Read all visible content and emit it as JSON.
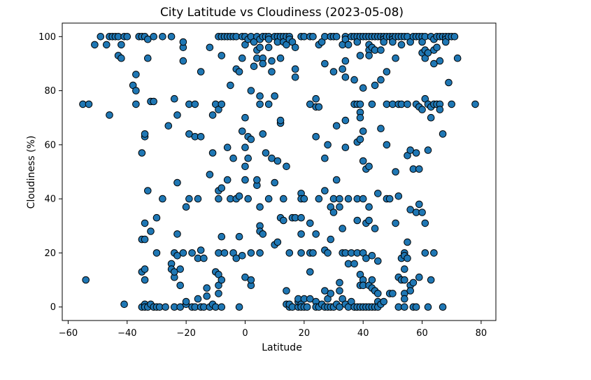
{
  "chart_data": {
    "type": "scatter",
    "title": "City Latitude vs Cloudiness (2023-05-08)",
    "xlabel": "Latitude",
    "ylabel": "Cloudiness (%)",
    "xlim": [
      -62,
      85
    ],
    "ylim": [
      -5,
      105
    ],
    "x_ticks": [
      -60,
      -40,
      -20,
      0,
      20,
      40,
      60,
      80
    ],
    "y_ticks": [
      0,
      20,
      40,
      60,
      80,
      100
    ],
    "grid": false,
    "marker_color": "#1f77b4",
    "marker_edge": "#000000",
    "points": [
      [
        -54,
        10
      ],
      [
        -55,
        75
      ],
      [
        -53,
        75
      ],
      [
        -51,
        97
      ],
      [
        -49,
        100
      ],
      [
        -47,
        97
      ],
      [
        -46,
        71
      ],
      [
        -46,
        100
      ],
      [
        -45,
        100
      ],
      [
        -44,
        100
      ],
      [
        -43,
        100
      ],
      [
        -43,
        93
      ],
      [
        -42,
        92
      ],
      [
        -42,
        97
      ],
      [
        -41,
        100
      ],
      [
        -41,
        1
      ],
      [
        -40,
        100
      ],
      [
        -38,
        82
      ],
      [
        -37,
        86
      ],
      [
        -37,
        75
      ],
      [
        -37,
        80
      ],
      [
        -36,
        100
      ],
      [
        -35,
        100
      ],
      [
        -35,
        13
      ],
      [
        -35,
        0
      ],
      [
        -35,
        57
      ],
      [
        -35,
        25
      ],
      [
        -34,
        100
      ],
      [
        -34,
        63
      ],
      [
        -34,
        64
      ],
      [
        -34,
        31
      ],
      [
        -34,
        14
      ],
      [
        -34,
        10
      ],
      [
        -34,
        1
      ],
      [
        -34,
        25
      ],
      [
        -34,
        0
      ],
      [
        -33,
        99
      ],
      [
        -33,
        92
      ],
      [
        -33,
        43
      ],
      [
        -33,
        0
      ],
      [
        -32,
        1
      ],
      [
        -32,
        76
      ],
      [
        -32,
        28
      ],
      [
        -31,
        100
      ],
      [
        -31,
        76
      ],
      [
        -31,
        0
      ],
      [
        -30,
        20
      ],
      [
        -30,
        33
      ],
      [
        -30,
        0
      ],
      [
        -29,
        0
      ],
      [
        -28,
        40
      ],
      [
        -28,
        100
      ],
      [
        -27,
        0
      ],
      [
        -26,
        67
      ],
      [
        -25,
        100
      ],
      [
        -25,
        16
      ],
      [
        -25,
        14
      ],
      [
        -24,
        20
      ],
      [
        -24,
        77
      ],
      [
        -24,
        0
      ],
      [
        -24,
        11
      ],
      [
        -24,
        13
      ],
      [
        -23,
        46
      ],
      [
        -23,
        71
      ],
      [
        -23,
        27
      ],
      [
        -23,
        19
      ],
      [
        -22,
        8
      ],
      [
        -22,
        0
      ],
      [
        -22,
        14
      ],
      [
        -21,
        96
      ],
      [
        -21,
        98
      ],
      [
        -21,
        91
      ],
      [
        -21,
        20
      ],
      [
        -20,
        1
      ],
      [
        -20,
        2
      ],
      [
        -20,
        37
      ],
      [
        -19,
        75
      ],
      [
        -19,
        64
      ],
      [
        -19,
        40
      ],
      [
        -18,
        0
      ],
      [
        -18,
        20
      ],
      [
        -17,
        75
      ],
      [
        -17,
        63
      ],
      [
        -17,
        0
      ],
      [
        -16,
        40
      ],
      [
        -16,
        18
      ],
      [
        -16,
        3
      ],
      [
        -15,
        87
      ],
      [
        -15,
        63
      ],
      [
        -15,
        21
      ],
      [
        -15,
        0
      ],
      [
        -14,
        18
      ],
      [
        -14,
        0
      ],
      [
        -13,
        7
      ],
      [
        -13,
        4
      ],
      [
        -12,
        96
      ],
      [
        -12,
        49
      ],
      [
        -12,
        0
      ],
      [
        -11,
        71
      ],
      [
        -11,
        57
      ],
      [
        -11,
        1
      ],
      [
        -10,
        0
      ],
      [
        -10,
        75
      ],
      [
        -10,
        13
      ],
      [
        -9,
        100
      ],
      [
        -9,
        73
      ],
      [
        -9,
        43
      ],
      [
        -9,
        40
      ],
      [
        -9,
        20
      ],
      [
        -9,
        12
      ],
      [
        -9,
        8
      ],
      [
        -9,
        5
      ],
      [
        -8,
        100
      ],
      [
        -8,
        93
      ],
      [
        -8,
        75
      ],
      [
        -8,
        44
      ],
      [
        -8,
        26
      ],
      [
        -8,
        10
      ],
      [
        -8,
        0
      ],
      [
        -7,
        100
      ],
      [
        -7,
        20
      ],
      [
        -6,
        100
      ],
      [
        -6,
        59
      ],
      [
        -6,
        47
      ],
      [
        -5,
        100
      ],
      [
        -5,
        82
      ],
      [
        -5,
        40
      ],
      [
        -4,
        100
      ],
      [
        -4,
        55
      ],
      [
        -4,
        20
      ],
      [
        -3,
        100
      ],
      [
        -3,
        88
      ],
      [
        -3,
        40
      ],
      [
        -3,
        18
      ],
      [
        -2,
        87
      ],
      [
        -2,
        41
      ],
      [
        -2,
        26
      ],
      [
        -2,
        0
      ],
      [
        -1,
        100
      ],
      [
        -1,
        92
      ],
      [
        -1,
        65
      ],
      [
        -1,
        19
      ],
      [
        0,
        100
      ],
      [
        0,
        97
      ],
      [
        0,
        70
      ],
      [
        0,
        59
      ],
      [
        0,
        52
      ],
      [
        0,
        47
      ],
      [
        0,
        11
      ],
      [
        1,
        99
      ],
      [
        1,
        63
      ],
      [
        1,
        55
      ],
      [
        1,
        40
      ],
      [
        2,
        100
      ],
      [
        2,
        80
      ],
      [
        2,
        62
      ],
      [
        2,
        20
      ],
      [
        2,
        8
      ],
      [
        2,
        10
      ],
      [
        3,
        89
      ],
      [
        3,
        98
      ],
      [
        4,
        95
      ],
      [
        4,
        92
      ],
      [
        4,
        100
      ],
      [
        4,
        45
      ],
      [
        4,
        47
      ],
      [
        5,
        99
      ],
      [
        5,
        96
      ],
      [
        5,
        78
      ],
      [
        5,
        75
      ],
      [
        5,
        37
      ],
      [
        5,
        30
      ],
      [
        5,
        28
      ],
      [
        5,
        20
      ],
      [
        6,
        100
      ],
      [
        6,
        92
      ],
      [
        6,
        90
      ],
      [
        6,
        64
      ],
      [
        6,
        27
      ],
      [
        7,
        100
      ],
      [
        7,
        57
      ],
      [
        8,
        100
      ],
      [
        8,
        99
      ],
      [
        8,
        96
      ],
      [
        8,
        75
      ],
      [
        8,
        40
      ],
      [
        9,
        91
      ],
      [
        9,
        87
      ],
      [
        9,
        55
      ],
      [
        10,
        100
      ],
      [
        10,
        46
      ],
      [
        10,
        78
      ],
      [
        10,
        23
      ],
      [
        11,
        100
      ],
      [
        11,
        98
      ],
      [
        11,
        54
      ],
      [
        11,
        24
      ],
      [
        12,
        100
      ],
      [
        12,
        92
      ],
      [
        12,
        68
      ],
      [
        12,
        69
      ],
      [
        12,
        33
      ],
      [
        13,
        100
      ],
      [
        13,
        98
      ],
      [
        13,
        40
      ],
      [
        13,
        32
      ],
      [
        14,
        100
      ],
      [
        14,
        97
      ],
      [
        14,
        52
      ],
      [
        14,
        6
      ],
      [
        14,
        1
      ],
      [
        15,
        100
      ],
      [
        15,
        99
      ],
      [
        15,
        20
      ],
      [
        15,
        0
      ],
      [
        15,
        1
      ],
      [
        16,
        98
      ],
      [
        16,
        33
      ],
      [
        16,
        0
      ],
      [
        17,
        96
      ],
      [
        17,
        85
      ],
      [
        17,
        88
      ],
      [
        17,
        33
      ],
      [
        18,
        0
      ],
      [
        18,
        2
      ],
      [
        18,
        3
      ],
      [
        19,
        100
      ],
      [
        19,
        42
      ],
      [
        19,
        40
      ],
      [
        19,
        33
      ],
      [
        19,
        27
      ],
      [
        19,
        20
      ],
      [
        19,
        1
      ],
      [
        19,
        0
      ],
      [
        20,
        100
      ],
      [
        20,
        40
      ],
      [
        20,
        3
      ],
      [
        20,
        0
      ],
      [
        21,
        0
      ],
      [
        22,
        100
      ],
      [
        22,
        75
      ],
      [
        22,
        31
      ],
      [
        22,
        20
      ],
      [
        22,
        13
      ],
      [
        22,
        3
      ],
      [
        23,
        100
      ],
      [
        23,
        20
      ],
      [
        24,
        77
      ],
      [
        24,
        74
      ],
      [
        24,
        63
      ],
      [
        24,
        27
      ],
      [
        24,
        2
      ],
      [
        24,
        0
      ],
      [
        25,
        97
      ],
      [
        25,
        74
      ],
      [
        25,
        40
      ],
      [
        25,
        0
      ],
      [
        26,
        98
      ],
      [
        26,
        1
      ],
      [
        27,
        100
      ],
      [
        27,
        90
      ],
      [
        27,
        55
      ],
      [
        27,
        43
      ],
      [
        27,
        21
      ],
      [
        27,
        6
      ],
      [
        27,
        0
      ],
      [
        28,
        60
      ],
      [
        28,
        20
      ],
      [
        28,
        3
      ],
      [
        28,
        0
      ],
      [
        29,
        100
      ],
      [
        29,
        37
      ],
      [
        29,
        25
      ],
      [
        29,
        5
      ],
      [
        29,
        0
      ],
      [
        30,
        100
      ],
      [
        30,
        87
      ],
      [
        30,
        40
      ],
      [
        30,
        35
      ],
      [
        30,
        0
      ],
      [
        31,
        100
      ],
      [
        31,
        67
      ],
      [
        31,
        47
      ],
      [
        31,
        1
      ],
      [
        32,
        9
      ],
      [
        32,
        6
      ],
      [
        32,
        0
      ],
      [
        32,
        37
      ],
      [
        32,
        40
      ],
      [
        33,
        97
      ],
      [
        33,
        88
      ],
      [
        33,
        29
      ],
      [
        33,
        20
      ],
      [
        33,
        3
      ],
      [
        34,
        100
      ],
      [
        34,
        99
      ],
      [
        34,
        91
      ],
      [
        34,
        85
      ],
      [
        34,
        69
      ],
      [
        34,
        59
      ],
      [
        34,
        20
      ],
      [
        34,
        1
      ],
      [
        35,
        97
      ],
      [
        35,
        40
      ],
      [
        35,
        16
      ],
      [
        35,
        0
      ],
      [
        36,
        100
      ],
      [
        36,
        20
      ],
      [
        36,
        2
      ],
      [
        37,
        100
      ],
      [
        37,
        84
      ],
      [
        37,
        75
      ],
      [
        37,
        16
      ],
      [
        37,
        0
      ],
      [
        38,
        100
      ],
      [
        38,
        98
      ],
      [
        38,
        75
      ],
      [
        38,
        61
      ],
      [
        38,
        40
      ],
      [
        38,
        32
      ],
      [
        38,
        20
      ],
      [
        38,
        0
      ],
      [
        39,
        100
      ],
      [
        39,
        93
      ],
      [
        39,
        75
      ],
      [
        39,
        72
      ],
      [
        39,
        70
      ],
      [
        39,
        62
      ],
      [
        39,
        12
      ],
      [
        39,
        8
      ],
      [
        39,
        0
      ],
      [
        40,
        100
      ],
      [
        40,
        81
      ],
      [
        40,
        65
      ],
      [
        40,
        54
      ],
      [
        40,
        40
      ],
      [
        40,
        20
      ],
      [
        40,
        10
      ],
      [
        40,
        8
      ],
      [
        40,
        0
      ],
      [
        41,
        100
      ],
      [
        41,
        51
      ],
      [
        41,
        31
      ],
      [
        41,
        18
      ],
      [
        41,
        0
      ],
      [
        42,
        100
      ],
      [
        42,
        97
      ],
      [
        42,
        95
      ],
      [
        42,
        93
      ],
      [
        42,
        52
      ],
      [
        42,
        37
      ],
      [
        42,
        32
      ],
      [
        42,
        8
      ],
      [
        42,
        0
      ],
      [
        43,
        100
      ],
      [
        43,
        96
      ],
      [
        43,
        75
      ],
      [
        43,
        19
      ],
      [
        43,
        10
      ],
      [
        43,
        7
      ],
      [
        43,
        0
      ],
      [
        44,
        100
      ],
      [
        44,
        95
      ],
      [
        44,
        82
      ],
      [
        44,
        29
      ],
      [
        44,
        6
      ],
      [
        44,
        0
      ],
      [
        45,
        100
      ],
      [
        45,
        42
      ],
      [
        45,
        17
      ],
      [
        45,
        5
      ],
      [
        45,
        2
      ],
      [
        45,
        0
      ],
      [
        46,
        100
      ],
      [
        46,
        95
      ],
      [
        46,
        84
      ],
      [
        46,
        66
      ],
      [
        46,
        1
      ],
      [
        47,
        100
      ],
      [
        47,
        99
      ],
      [
        47,
        98
      ],
      [
        47,
        2
      ],
      [
        48,
        100
      ],
      [
        48,
        87
      ],
      [
        48,
        75
      ],
      [
        48,
        60
      ],
      [
        48,
        40
      ],
      [
        49,
        100
      ],
      [
        49,
        40
      ],
      [
        49,
        5
      ],
      [
        50,
        100
      ],
      [
        50,
        99
      ],
      [
        50,
        98
      ],
      [
        50,
        75
      ],
      [
        50,
        5
      ],
      [
        51,
        100
      ],
      [
        51,
        92
      ],
      [
        51,
        50
      ],
      [
        51,
        31
      ],
      [
        52,
        100
      ],
      [
        52,
        75
      ],
      [
        52,
        41
      ],
      [
        52,
        11
      ],
      [
        52,
        0
      ],
      [
        53,
        100
      ],
      [
        53,
        97
      ],
      [
        53,
        75
      ],
      [
        53,
        18
      ],
      [
        53,
        10
      ],
      [
        54,
        100
      ],
      [
        54,
        20
      ],
      [
        54,
        19
      ],
      [
        54,
        14
      ],
      [
        54,
        10
      ],
      [
        54,
        5
      ],
      [
        54,
        3
      ],
      [
        54,
        0
      ],
      [
        55,
        100
      ],
      [
        55,
        75
      ],
      [
        55,
        56
      ],
      [
        55,
        24
      ],
      [
        55,
        18
      ],
      [
        56,
        98
      ],
      [
        56,
        58
      ],
      [
        56,
        36
      ],
      [
        56,
        8
      ],
      [
        56,
        6
      ],
      [
        57,
        100
      ],
      [
        57,
        51
      ],
      [
        57,
        9
      ],
      [
        57,
        0
      ],
      [
        58,
        100
      ],
      [
        58,
        75
      ],
      [
        58,
        57
      ],
      [
        58,
        35
      ],
      [
        58,
        0
      ],
      [
        59,
        100
      ],
      [
        59,
        74
      ],
      [
        59,
        51
      ],
      [
        59,
        38
      ],
      [
        59,
        11
      ],
      [
        60,
        100
      ],
      [
        60,
        98
      ],
      [
        60,
        94
      ],
      [
        60,
        73
      ],
      [
        60,
        35
      ],
      [
        61,
        100
      ],
      [
        61,
        95
      ],
      [
        61,
        92
      ],
      [
        61,
        77
      ],
      [
        61,
        31
      ],
      [
        61,
        20
      ],
      [
        62,
        94
      ],
      [
        62,
        75
      ],
      [
        62,
        58
      ],
      [
        62,
        0
      ],
      [
        63,
        100
      ],
      [
        63,
        74
      ],
      [
        63,
        70
      ],
      [
        63,
        10
      ],
      [
        64,
        99
      ],
      [
        64,
        95
      ],
      [
        64,
        90
      ],
      [
        64,
        75
      ],
      [
        64,
        20
      ],
      [
        65,
        100
      ],
      [
        65,
        96
      ],
      [
        65,
        75
      ],
      [
        66,
        100
      ],
      [
        66,
        91
      ],
      [
        66,
        75
      ],
      [
        66,
        73
      ],
      [
        67,
        100
      ],
      [
        67,
        64
      ],
      [
        67,
        0
      ],
      [
        68,
        100
      ],
      [
        68,
        99
      ],
      [
        68,
        98
      ],
      [
        69,
        100
      ],
      [
        69,
        83
      ],
      [
        70,
        100
      ],
      [
        70,
        75
      ],
      [
        71,
        100
      ],
      [
        72,
        92
      ],
      [
        78,
        75
      ]
    ]
  }
}
